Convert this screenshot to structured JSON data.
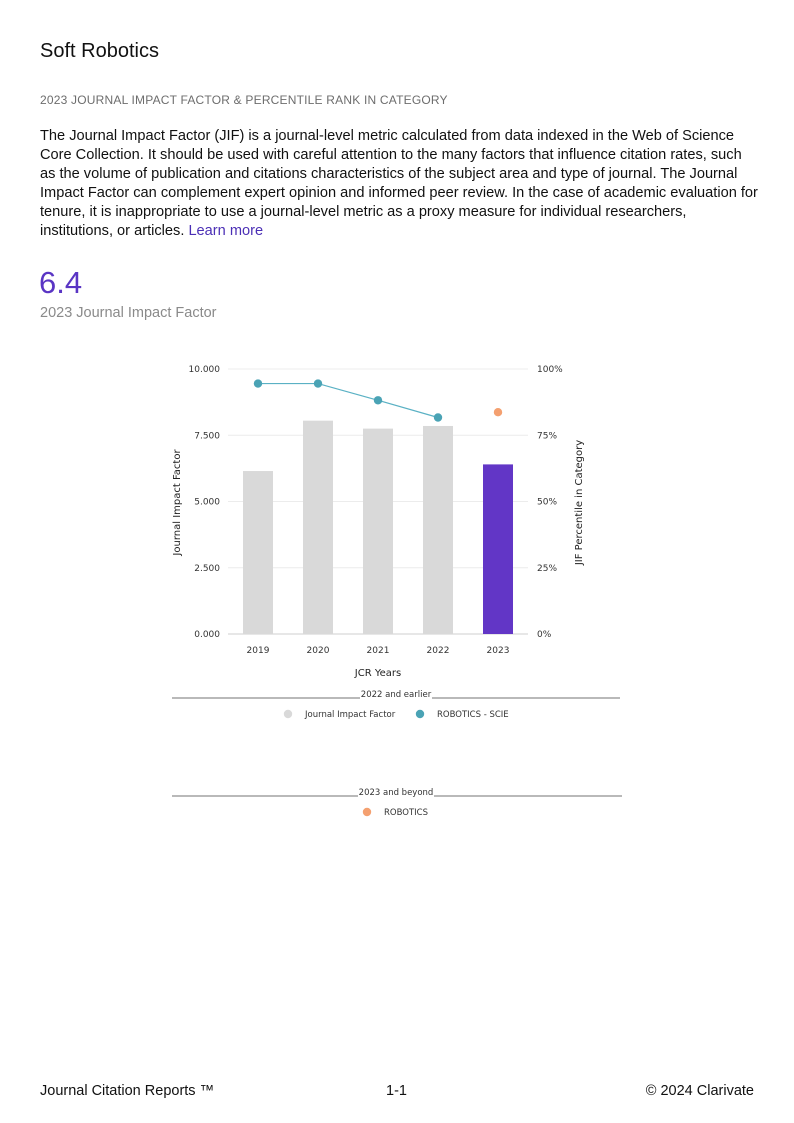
{
  "journal": {
    "title": "Soft Robotics"
  },
  "section_heading": "2023 JOURNAL IMPACT FACTOR & PERCENTILE RANK IN CATEGORY",
  "description": {
    "text": "The Journal Impact Factor (JIF) is a journal-level metric calculated from data indexed in the Web of Science Core Collection. It should be used with careful attention to the many factors that influence citation rates, such as the volume of publication and citations characteristics of the subject area and type of journal. The Journal Impact Factor can complement expert opinion and informed peer review. In the case of academic evaluation for tenure, it is inappropriate to use a journal-level metric as a proxy measure for individual researchers, institutions, or articles.",
    "link_label": "Learn more"
  },
  "jif": {
    "value": "6.4",
    "label": "2023 Journal Impact Factor"
  },
  "chart_data": {
    "type": "bar",
    "categories": [
      "2019",
      "2020",
      "2021",
      "2022",
      "2023"
    ],
    "series": [
      {
        "name": "Journal Impact Factor",
        "kind": "bar",
        "axis": "left",
        "values": [
          6.15,
          8.05,
          7.75,
          7.85,
          6.4
        ],
        "colors": [
          "#d9d9d9",
          "#d9d9d9",
          "#d9d9d9",
          "#d9d9d9",
          "#6236c6"
        ]
      },
      {
        "name": "ROBOTICS - SCIE",
        "kind": "line",
        "axis": "right",
        "values": [
          94.5,
          94.5,
          88.2,
          81.7,
          null
        ],
        "color": "#5ab1c4"
      },
      {
        "name": "ROBOTICS",
        "kind": "point",
        "axis": "right",
        "values": [
          null,
          null,
          null,
          null,
          83.7
        ],
        "color": "#f4a070"
      }
    ],
    "xlabel": "JCR Years",
    "ylabel": "Journal Impact Factor",
    "y2label": "JIF Percentile in Category",
    "ylim": [
      0,
      10
    ],
    "y2lim": [
      0,
      100
    ],
    "yticks": [
      "0.000",
      "2.500",
      "5.000",
      "7.500",
      "10.000"
    ],
    "y2ticks": [
      "0%",
      "25%",
      "50%",
      "75%",
      "100%"
    ],
    "grid": true,
    "legend_groups": [
      {
        "title": "2022 and earlier",
        "items": [
          {
            "label": "Journal Impact Factor",
            "color": "#d9d9d9"
          },
          {
            "label": "ROBOTICS - SCIE",
            "color": "#4aa3b5"
          }
        ]
      },
      {
        "title": "2023 and beyond",
        "items": [
          {
            "label": "ROBOTICS",
            "color": "#f4a070"
          }
        ]
      }
    ]
  },
  "footer": {
    "left": "Journal Citation Reports ™",
    "center": "1-1",
    "right": "© 2024 Clarivate"
  }
}
